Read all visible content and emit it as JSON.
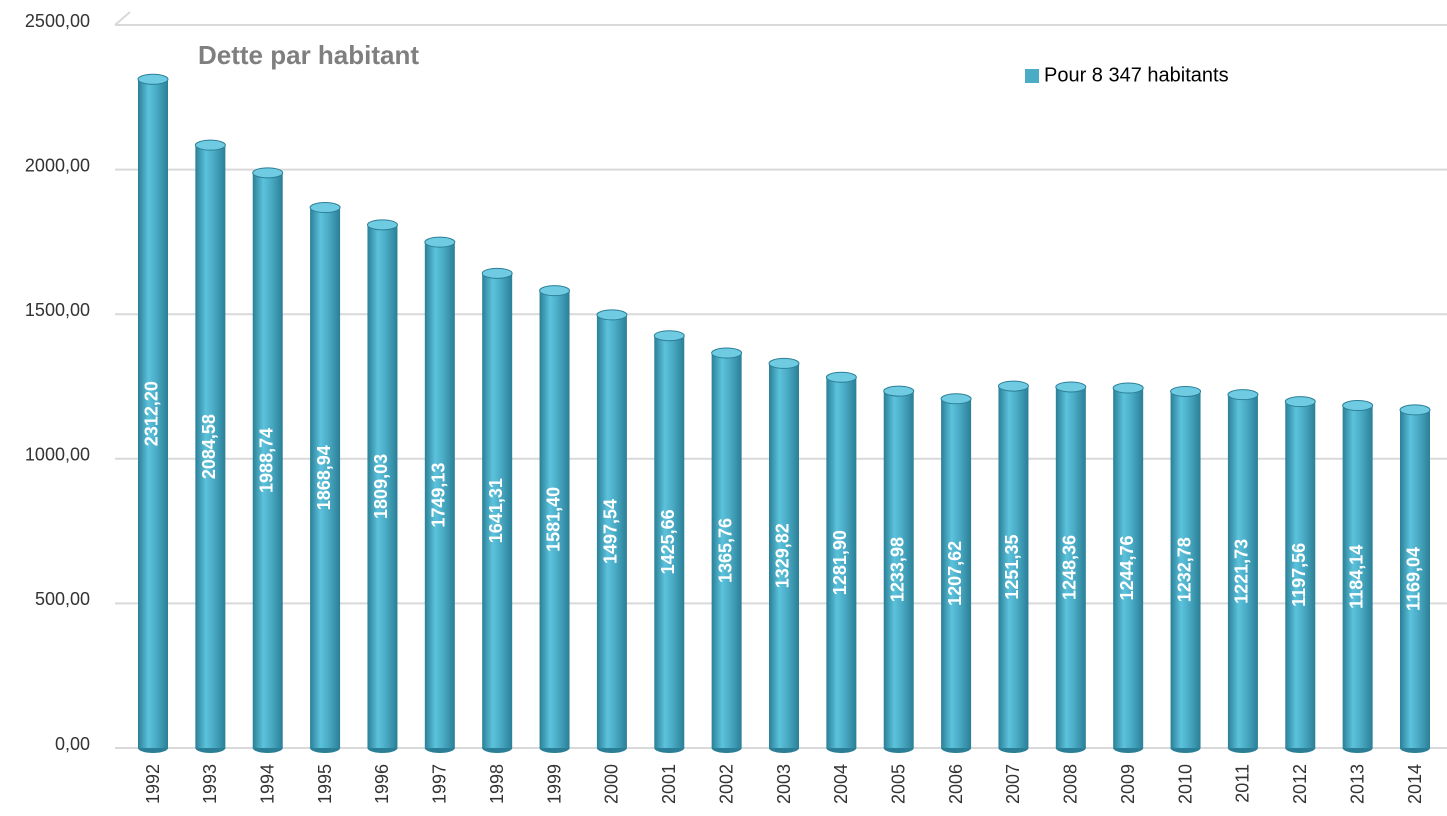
{
  "chart_data": {
    "type": "bar",
    "title": "Dette par habitant",
    "categories": [
      "1992",
      "1993",
      "1994",
      "1995",
      "1996",
      "1997",
      "1998",
      "1999",
      "2000",
      "2001",
      "2002",
      "2003",
      "2004",
      "2005",
      "2006",
      "2007",
      "2008",
      "2009",
      "2010",
      "2011",
      "2012",
      "2013",
      "2014"
    ],
    "series": [
      {
        "name": "Pour 8 347 habitants",
        "color": "#4bacc6",
        "values": [
          2312.2,
          2084.58,
          1988.74,
          1868.94,
          1809.03,
          1749.13,
          1641.31,
          1581.4,
          1497.54,
          1425.66,
          1365.76,
          1329.82,
          1281.9,
          1233.98,
          1207.62,
          1251.35,
          1248.36,
          1244.76,
          1232.78,
          1221.73,
          1197.56,
          1184.14,
          1169.04
        ],
        "value_labels": [
          "2312,20",
          "2084,58",
          "1988,74",
          "1868,94",
          "1809,03",
          "1749,13",
          "1641,31",
          "1581,40",
          "1497,54",
          "1425,66",
          "1365,76",
          "1329,82",
          "1281,90",
          "1233,98",
          "1207,62",
          "1251,35",
          "1248,36",
          "1244,76",
          "1232,78",
          "1221,73",
          "1197,56",
          "1184,14",
          "1169,04"
        ]
      }
    ],
    "ylim": [
      0,
      2500
    ],
    "yticks": [
      {
        "value": 0,
        "label": "0,00"
      },
      {
        "value": 500,
        "label": "500,00"
      },
      {
        "value": 1000,
        "label": "1000,00"
      },
      {
        "value": 1500,
        "label": "1500,00"
      },
      {
        "value": 2000,
        "label": "2000,00"
      },
      {
        "value": 2500,
        "label": "2500,00"
      }
    ],
    "grid": true
  }
}
